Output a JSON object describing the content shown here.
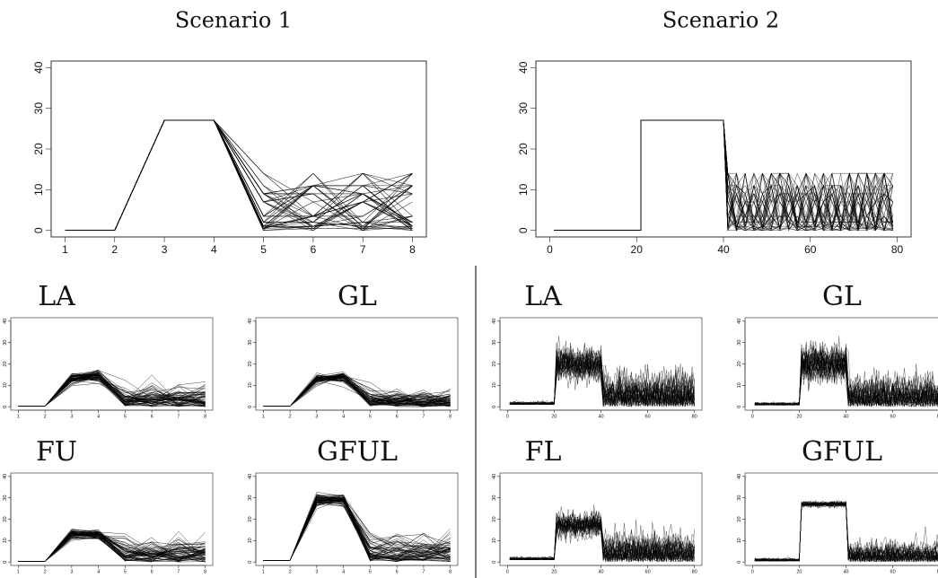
{
  "chart_data": [
    {
      "id": "s1-main",
      "type": "line",
      "title": "Scenario 1",
      "xlim": [
        1,
        8
      ],
      "ylim": [
        0,
        40
      ],
      "xticks": [
        1,
        2,
        3,
        4,
        5,
        6,
        7,
        8
      ],
      "yticks": [
        0,
        10,
        20,
        30,
        40
      ],
      "style": "true-signals",
      "true_level": 27,
      "levels": [
        0,
        0.5,
        1,
        2,
        3.5,
        7,
        9,
        11,
        14
      ]
    },
    {
      "id": "s2-main",
      "type": "line",
      "title": "Scenario 2",
      "xlim": [
        0,
        80
      ],
      "ylim": [
        0,
        40
      ],
      "xticks": [
        0,
        20,
        40,
        60,
        80
      ],
      "yticks": [
        0,
        10,
        20,
        30,
        40
      ],
      "style": "true-signals",
      "true_level": 27,
      "levels": [
        0,
        0.5,
        1,
        2,
        3.5,
        7,
        9,
        11,
        14
      ]
    },
    {
      "id": "s1-la",
      "type": "line",
      "title": "LA",
      "xlim": [
        1,
        8
      ],
      "ylim": [
        0,
        40
      ],
      "xticks": [
        1,
        2,
        3,
        4,
        5,
        6,
        7,
        8
      ],
      "yticks": [
        0,
        10,
        20,
        30,
        40
      ],
      "style": "estimates",
      "baseline": 0.3,
      "peak": [
        13,
        14.5
      ],
      "peak_spread": 3.5,
      "tail_max": 13,
      "mode": "rise"
    },
    {
      "id": "s1-gl",
      "type": "line",
      "title": "GL",
      "xlim": [
        1,
        8
      ],
      "ylim": [
        0,
        40
      ],
      "xticks": [
        1,
        2,
        3,
        4,
        5,
        6,
        7,
        8
      ],
      "yticks": [
        0,
        10,
        20,
        30,
        40
      ],
      "style": "estimates",
      "baseline": 0.3,
      "peak": [
        13,
        14
      ],
      "peak_spread": 3,
      "tail_max": 10,
      "mode": "rise"
    },
    {
      "id": "s1-fu",
      "type": "line",
      "title": "FU",
      "xlim": [
        1,
        8
      ],
      "ylim": [
        0,
        40
      ],
      "xticks": [
        1,
        2,
        3,
        4,
        5,
        6,
        7,
        8
      ],
      "yticks": [
        0,
        10,
        20,
        30,
        40
      ],
      "style": "estimates",
      "baseline": 0.3,
      "peak": [
        13,
        13
      ],
      "peak_spread": 3,
      "tail_max": 14,
      "mode": "flat"
    },
    {
      "id": "s1-gful",
      "type": "line",
      "title": "GFUL",
      "xlim": [
        1,
        8
      ],
      "ylim": [
        0,
        40
      ],
      "xticks": [
        1,
        2,
        3,
        4,
        5,
        6,
        7,
        8
      ],
      "yticks": [
        0,
        10,
        20,
        30,
        40
      ],
      "style": "estimates",
      "baseline": 0.8,
      "peak": [
        29,
        29
      ],
      "peak_spread": 3.5,
      "tail_max": 17,
      "mode": "flat"
    },
    {
      "id": "s2-la",
      "type": "line",
      "title": "LA",
      "xlim": [
        0,
        80
      ],
      "ylim": [
        0,
        40
      ],
      "xticks": [
        0,
        20,
        40,
        60,
        80
      ],
      "yticks": [
        0,
        10,
        20,
        30,
        40
      ],
      "style": "noisy",
      "baseline": 1,
      "block": 20,
      "block_noise": 8,
      "tail_noise": 12
    },
    {
      "id": "s2-gl",
      "type": "line",
      "title": "GL",
      "xlim": [
        0,
        80
      ],
      "ylim": [
        0,
        40
      ],
      "xticks": [
        0,
        20,
        40,
        60,
        80
      ],
      "yticks": [
        0,
        10,
        20,
        30,
        40
      ],
      "style": "noisy",
      "baseline": 0.7,
      "block": 20,
      "block_noise": 9,
      "tail_noise": 11
    },
    {
      "id": "s2-fl",
      "type": "line",
      "title": "FL",
      "xlim": [
        0,
        80
      ],
      "ylim": [
        0,
        40
      ],
      "xticks": [
        0,
        20,
        40,
        60,
        80
      ],
      "yticks": [
        0,
        10,
        20,
        30,
        40
      ],
      "style": "noisy",
      "baseline": 1,
      "block": 17,
      "block_noise": 6,
      "tail_noise": 10
    },
    {
      "id": "s2-gful",
      "type": "line",
      "title": "GFUL",
      "xlim": [
        0,
        80
      ],
      "ylim": [
        0,
        40
      ],
      "xticks": [
        0,
        20,
        40,
        60,
        80
      ],
      "yticks": [
        0,
        10,
        20,
        30,
        40
      ],
      "style": "noisy",
      "baseline": 0.4,
      "block": 27,
      "block_noise": 1.5,
      "tail_noise": 7
    }
  ]
}
